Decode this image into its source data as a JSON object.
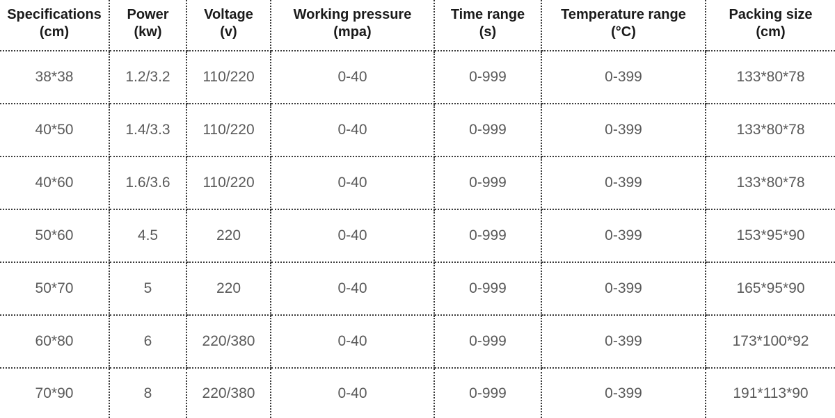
{
  "table": {
    "header": [
      [
        "Specifications",
        "(cm)"
      ],
      [
        "Power",
        "(kw)"
      ],
      [
        "Voltage",
        "(v)"
      ],
      [
        "Working pressure",
        "(mpa)"
      ],
      [
        "Time range",
        "(s)"
      ],
      [
        "Temperature range",
        "(°C)"
      ],
      [
        "Packing size",
        "(cm)"
      ]
    ],
    "rows": [
      [
        "38*38",
        "1.2/3.2",
        "110/220",
        "0-40",
        "0-999",
        "0-399",
        "133*80*78"
      ],
      [
        "40*50",
        "1.4/3.3",
        "110/220",
        "0-40",
        "0-999",
        "0-399",
        "133*80*78"
      ],
      [
        "40*60",
        "1.6/3.6",
        "110/220",
        "0-40",
        "0-999",
        "0-399",
        "133*80*78"
      ],
      [
        "50*60",
        "4.5",
        "220",
        "0-40",
        "0-999",
        "0-399",
        "153*95*90"
      ],
      [
        "50*70",
        "5",
        "220",
        "0-40",
        "0-999",
        "0-399",
        "165*95*90"
      ],
      [
        "60*80",
        "6",
        "220/380",
        "0-40",
        "0-999",
        "0-399",
        "173*100*92"
      ],
      [
        "70*90",
        "8",
        "220/380",
        "0-40",
        "0-999",
        "0-399",
        "191*113*90"
      ]
    ]
  }
}
